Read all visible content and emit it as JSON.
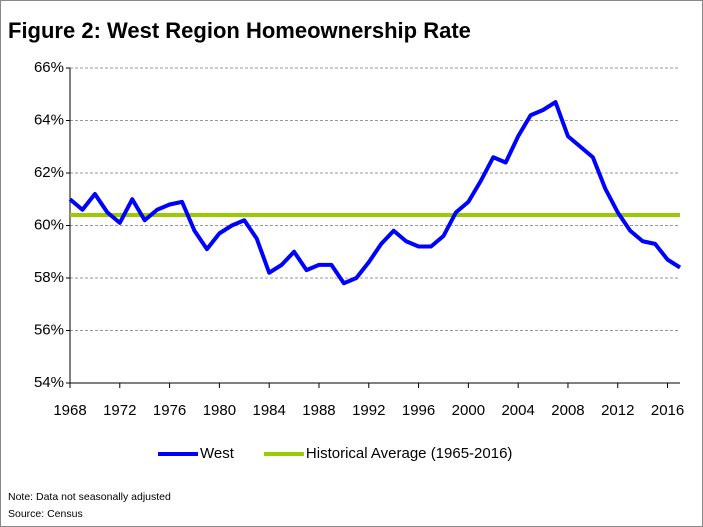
{
  "chart_data": {
    "type": "line",
    "title": "Figure 2: West Region Homeownership Rate",
    "x": [
      1968,
      1969,
      1970,
      1971,
      1972,
      1973,
      1974,
      1975,
      1976,
      1977,
      1978,
      1979,
      1980,
      1981,
      1982,
      1983,
      1984,
      1985,
      1986,
      1987,
      1988,
      1989,
      1990,
      1991,
      1992,
      1993,
      1994,
      1995,
      1996,
      1997,
      1998,
      1999,
      2000,
      2001,
      2002,
      2003,
      2004,
      2005,
      2006,
      2007,
      2008,
      2009,
      2010,
      2011,
      2012,
      2013,
      2014,
      2015,
      2016,
      2017
    ],
    "series": [
      {
        "name": "West",
        "color": "#0000ff",
        "values": [
          61.0,
          60.6,
          61.2,
          60.5,
          60.1,
          61.0,
          60.2,
          60.6,
          60.8,
          60.9,
          59.8,
          59.1,
          59.7,
          60.0,
          60.2,
          59.5,
          58.2,
          58.5,
          59.0,
          58.3,
          58.5,
          58.5,
          57.8,
          58.0,
          58.6,
          59.3,
          59.8,
          59.4,
          59.2,
          59.2,
          59.6,
          60.5,
          60.9,
          61.7,
          62.6,
          62.4,
          63.4,
          64.2,
          64.4,
          64.7,
          63.4,
          63.0,
          62.6,
          61.4,
          60.5,
          59.8,
          59.4,
          59.3,
          58.7,
          58.4
        ]
      }
    ],
    "reference_lines": [
      {
        "name": "Historical Average (1965-2016)",
        "value": 60.4,
        "color": "#99cc00"
      }
    ],
    "xlim": [
      1968,
      2017
    ],
    "xticks": [
      1968,
      1972,
      1976,
      1980,
      1984,
      1988,
      1992,
      1996,
      2000,
      2004,
      2008,
      2012,
      2016
    ],
    "ylim": [
      54,
      66
    ],
    "yticks": [
      {
        "value": 54,
        "label": "54%"
      },
      {
        "value": 56,
        "label": "56%"
      },
      {
        "value": 58,
        "label": "58%"
      },
      {
        "value": 60,
        "label": "60%"
      },
      {
        "value": 62,
        "label": "62%"
      },
      {
        "value": 64,
        "label": "64%"
      },
      {
        "value": 66,
        "label": "66%"
      }
    ],
    "grid": true,
    "legend": "bottom",
    "notes": [
      "Note: Data not seasonally adjusted",
      "Source: Census"
    ]
  }
}
